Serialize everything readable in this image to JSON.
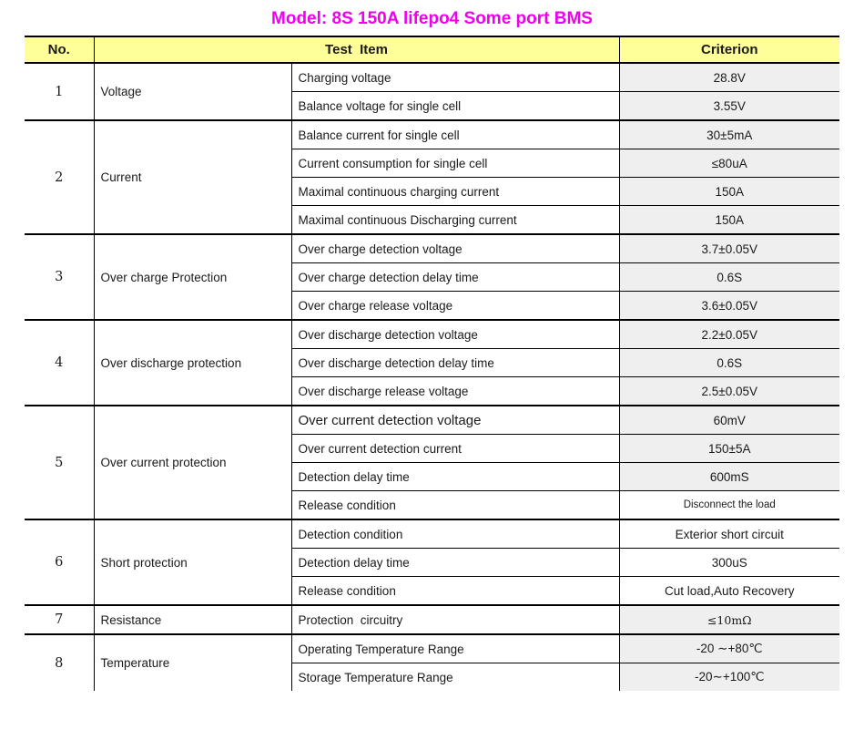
{
  "title": "Model: 8S 150A lifepo4 Some port BMS",
  "colors": {
    "title_text": "#ee00ee",
    "header_bg": "#ffff99",
    "shaded_cell_bg": "#efefef",
    "border": "#000000",
    "body_text": "#1a1a1a"
  },
  "table": {
    "headers": {
      "no": "No.",
      "test_item": "Test  Item",
      "criterion": "Criterion"
    },
    "groups": [
      {
        "no": "1",
        "category": "Voltage",
        "rows": [
          {
            "item": "Charging voltage",
            "criterion": "28.8V",
            "shaded": true
          },
          {
            "item": "Balance voltage for single cell",
            "criterion": "3.55V",
            "shaded": true
          }
        ]
      },
      {
        "no": "2",
        "category": "Current",
        "rows": [
          {
            "item": "Balance current for single cell",
            "criterion": "30±5mA",
            "shaded": true
          },
          {
            "item": "Current consumption for single cell",
            "criterion": "≤80uA",
            "shaded": true
          },
          {
            "item": "Maximal continuous charging current",
            "criterion": "150A",
            "shaded": true
          },
          {
            "item": "Maximal continuous Discharging current",
            "criterion": "150A",
            "shaded": true
          }
        ]
      },
      {
        "no": "3",
        "category": "Over charge Protection",
        "rows": [
          {
            "item": "Over charge detection voltage",
            "criterion": "3.7±0.05V",
            "shaded": true
          },
          {
            "item": "Over charge detection delay time",
            "criterion": "0.6S",
            "shaded": true
          },
          {
            "item": "Over charge release voltage",
            "criterion": "3.6±0.05V",
            "shaded": true
          }
        ]
      },
      {
        "no": "4",
        "category": "Over discharge protection",
        "rows": [
          {
            "item": "Over discharge detection voltage",
            "criterion": "2.2±0.05V",
            "shaded": true
          },
          {
            "item": "Over discharge detection delay time",
            "criterion": "0.6S",
            "shaded": true
          },
          {
            "item": "Over discharge release voltage",
            "criterion": "2.5±0.05V",
            "shaded": true
          }
        ]
      },
      {
        "no": "5",
        "category": "Over current protection",
        "rows": [
          {
            "item": "Over current detection voltage",
            "criterion": "60mV",
            "shaded": true,
            "large": true
          },
          {
            "item": "Over current detection current",
            "criterion": "150±5A",
            "shaded": true
          },
          {
            "item": "Detection delay time",
            "criterion": "600mS",
            "shaded": true
          },
          {
            "item": "Release condition",
            "criterion": "Disconnect the load",
            "shaded": false,
            "small": true
          }
        ]
      },
      {
        "no": "6",
        "category": "Short protection",
        "rows": [
          {
            "item": "Detection condition",
            "criterion": "Exterior short circuit",
            "shaded": false
          },
          {
            "item": "Detection delay time",
            "criterion": "300uS",
            "shaded": false
          },
          {
            "item": "Release condition",
            "criterion": "Cut load,Auto Recovery",
            "shaded": false
          }
        ]
      },
      {
        "no": "7",
        "category": "Resistance",
        "rows": [
          {
            "item": "Protection  circuitry",
            "criterion": "≤10mΩ",
            "shaded": true,
            "serif": true
          }
        ]
      },
      {
        "no": "8",
        "category": "Temperature",
        "rows": [
          {
            "item": "Operating Temperature Range",
            "criterion": "-20 ∼+80℃",
            "shaded": true
          },
          {
            "item": "Storage Temperature Range",
            "criterion": "-20∼+100℃",
            "shaded": true
          }
        ]
      }
    ]
  }
}
